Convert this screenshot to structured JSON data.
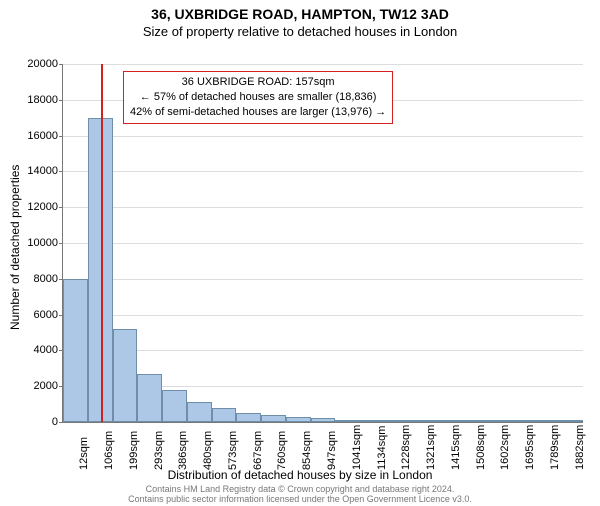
{
  "title": "36, UXBRIDGE ROAD, HAMPTON, TW12 3AD",
  "subtitle": "Size of property relative to detached houses in London",
  "chart": {
    "type": "histogram",
    "background_color": "#ffffff",
    "grid_color": "#dddddd",
    "axis_color": "#777777",
    "bar_fill": "#adc8e6",
    "bar_stroke": "#6f8fa8",
    "marker_color": "#d32020",
    "x_categories": [
      "12sqm",
      "106sqm",
      "199sqm",
      "293sqm",
      "386sqm",
      "480sqm",
      "573sqm",
      "667sqm",
      "760sqm",
      "854sqm",
      "947sqm",
      "1041sqm",
      "1134sqm",
      "1228sqm",
      "1321sqm",
      "1415sqm",
      "1508sqm",
      "1602sqm",
      "1695sqm",
      "1789sqm",
      "1882sqm"
    ],
    "bar_values": [
      8000,
      17000,
      5200,
      2700,
      1800,
      1100,
      800,
      500,
      380,
      280,
      200,
      140,
      110,
      85,
      65,
      50,
      40,
      30,
      22,
      16,
      12
    ],
    "y_ticks": [
      0,
      2000,
      4000,
      6000,
      8000,
      10000,
      12000,
      14000,
      16000,
      18000,
      20000
    ],
    "ylim_max": 20000,
    "marker_x_sqm": 157,
    "x_start": 12,
    "x_end": 1976,
    "ylabel": "Number of detached properties",
    "xlabel": "Distribution of detached houses by size in London",
    "label_fontsize": 12,
    "tick_fontsize": 11
  },
  "annotation": {
    "line1": "36 UXBRIDGE ROAD: 157sqm",
    "line2": "← 57% of detached houses are smaller (18,836)",
    "line3": "42% of semi-detached houses are larger (13,976) →",
    "border_color": "#d32020",
    "bg_color": "#ffffff",
    "fontsize": 11
  },
  "footer": {
    "line1": "Contains HM Land Registry data © Crown copyright and database right 2024.",
    "line2": "Contains public sector information licensed under the Open Government Licence v3.0.",
    "color": "#777777",
    "fontsize": 9
  }
}
